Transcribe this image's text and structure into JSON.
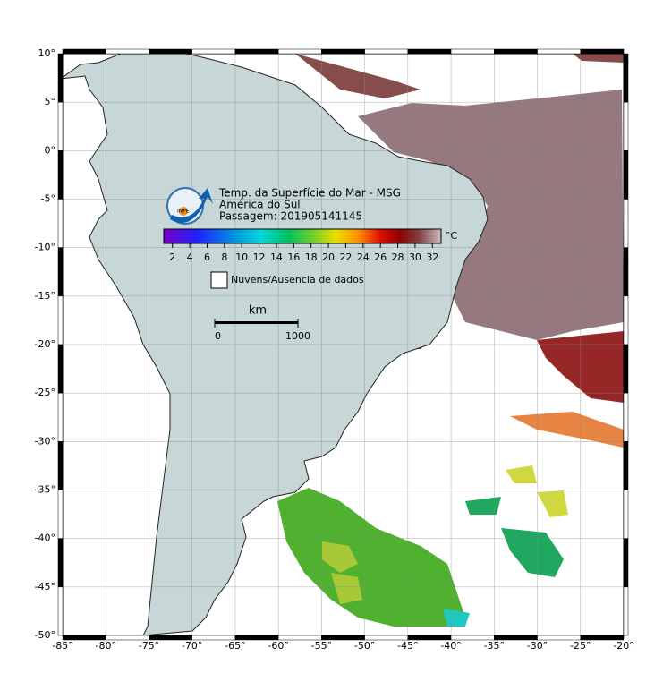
{
  "map": {
    "title_lines": [
      "Temp. da Superfície do Mar - MSG",
      "América do Sul",
      "Passagem: 201905141145"
    ],
    "logo": "INPE",
    "lon_range": [
      -85,
      -20
    ],
    "lat_range": [
      -50,
      10
    ],
    "lon_ticks": [
      {
        "value": -85,
        "label": "-85°"
      },
      {
        "value": -80,
        "label": "-80°"
      },
      {
        "value": -75,
        "label": "-75°"
      },
      {
        "value": -70,
        "label": "-70°"
      },
      {
        "value": -65,
        "label": "-65°"
      },
      {
        "value": -60,
        "label": "-60°"
      },
      {
        "value": -55,
        "label": "-55°"
      },
      {
        "value": -50,
        "label": "-50°"
      },
      {
        "value": -45,
        "label": "-45°"
      },
      {
        "value": -40,
        "label": "-40°"
      },
      {
        "value": -35,
        "label": "-35°"
      },
      {
        "value": -30,
        "label": "-30°"
      },
      {
        "value": -25,
        "label": "-25°"
      },
      {
        "value": -20,
        "label": "-20°"
      }
    ],
    "lat_ticks": [
      {
        "value": 10,
        "label": "10°"
      },
      {
        "value": 5,
        "label": "5°"
      },
      {
        "value": 0,
        "label": "0°"
      },
      {
        "value": -5,
        "label": "-5°"
      },
      {
        "value": -10,
        "label": "-10°"
      },
      {
        "value": -15,
        "label": "-15°"
      },
      {
        "value": -20,
        "label": "-20°"
      },
      {
        "value": -25,
        "label": "-25°"
      },
      {
        "value": -30,
        "label": "-30°"
      },
      {
        "value": -35,
        "label": "-35°"
      },
      {
        "value": -40,
        "label": "-40°"
      },
      {
        "value": -45,
        "label": "-45°"
      },
      {
        "value": -50,
        "label": "-50°"
      }
    ],
    "colorbar": {
      "range": [
        1,
        33
      ],
      "ticks": [
        2,
        4,
        6,
        8,
        10,
        12,
        14,
        16,
        18,
        20,
        22,
        24,
        26,
        28,
        30,
        32
      ],
      "unit": "°C"
    },
    "legend": "Nuvens/Ausencia de dados",
    "scale_bar": {
      "unit": "km",
      "ticks": [
        0,
        1000
      ]
    }
  }
}
